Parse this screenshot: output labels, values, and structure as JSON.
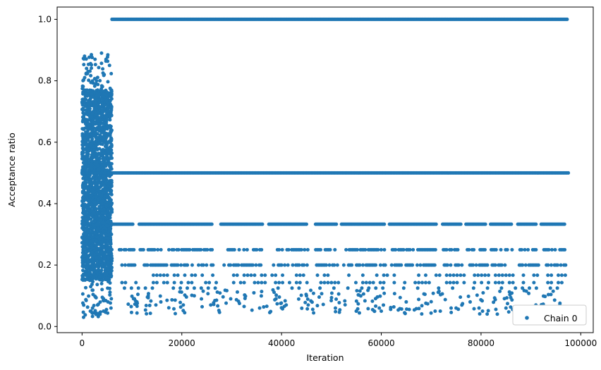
{
  "chart_data": {
    "type": "scatter",
    "xlabel": "Iteration",
    "ylabel": "Acceptance ratio",
    "xlim": [
      -5000,
      102500
    ],
    "ylim": [
      -0.02,
      1.04
    ],
    "xticks": [
      0,
      20000,
      40000,
      60000,
      80000,
      100000
    ],
    "xtick_labels": [
      "0",
      "20000",
      "40000",
      "60000",
      "80000",
      "100000"
    ],
    "yticks": [
      0.0,
      0.2,
      0.4,
      0.6,
      0.8,
      1.0
    ],
    "ytick_labels": [
      "0.0",
      "0.2",
      "0.4",
      "0.6",
      "0.8",
      "1.0"
    ],
    "grid": false,
    "legend_position": "bottom-right",
    "marker": "circle",
    "series": [
      {
        "name": "Chain 0",
        "color": "#1f77b4",
        "description_of_structure": {
          "burn_in": {
            "x_range": [
              0,
              6000
            ],
            "y_range": [
              0.03,
              0.89
            ]
          },
          "levels": [
            {
              "y": 1.0,
              "x_range": [
                6000,
                97500
              ],
              "density": "continuous"
            },
            {
              "y": 0.5,
              "x_range": [
                0,
                97500
              ],
              "density": "continuous"
            },
            {
              "y": 0.333,
              "x_range": [
                6000,
                97500
              ],
              "density": "dense segments"
            },
            {
              "y": 0.25,
              "x_range": [
                7500,
                97500
              ],
              "density": "segments"
            },
            {
              "y": 0.2,
              "x_range": [
                8000,
                97000
              ],
              "density": "segments"
            },
            {
              "y": 0.167,
              "x_range": [
                8000,
                97000
              ],
              "density": "sparse segments"
            },
            {
              "y": 0.143,
              "x_range": [
                8000,
                97000
              ],
              "density": "sparse segments"
            },
            {
              "y": 0.125,
              "x_range": [
                8500,
                97000
              ],
              "density": "sparse"
            }
          ],
          "sparse_low_values": {
            "y_range": [
              0.04,
              0.12
            ]
          }
        },
        "points": [
          [
            300,
            0.03
          ],
          [
            500,
            0.88
          ],
          [
            900,
            0.84
          ],
          [
            1200,
            0.83
          ],
          [
            1800,
            0.05
          ],
          [
            2100,
            0.06
          ],
          [
            2600,
            0.87
          ],
          [
            3100,
            0.07
          ],
          [
            3600,
            0.04
          ],
          [
            3900,
            0.89
          ],
          [
            4300,
            0.05
          ],
          [
            4800,
            0.87
          ],
          [
            5200,
            0.08
          ],
          [
            5500,
            0.85
          ],
          [
            5800,
            0.06
          ],
          [
            10500,
            0.09
          ],
          [
            11000,
            0.08
          ],
          [
            14800,
            0.07
          ],
          [
            15800,
            0.08
          ],
          [
            20300,
            0.07
          ],
          [
            22500,
            0.1
          ],
          [
            25800,
            0.07
          ],
          [
            29800,
            0.09
          ],
          [
            35600,
            0.06
          ],
          [
            45000,
            0.1
          ],
          [
            50800,
            0.06
          ],
          [
            55000,
            0.05
          ],
          [
            58600,
            0.05
          ],
          [
            59600,
            0.06
          ],
          [
            60000,
            0.05
          ],
          [
            65000,
            0.08
          ],
          [
            70800,
            0.05
          ],
          [
            74000,
            0.06
          ],
          [
            75000,
            0.06
          ],
          [
            79600,
            0.06
          ],
          [
            80300,
            0.05
          ],
          [
            85000,
            0.06
          ],
          [
            91000,
            0.07
          ],
          [
            95800,
            0.07
          ],
          [
            96300,
            0.06
          ]
        ]
      }
    ]
  }
}
